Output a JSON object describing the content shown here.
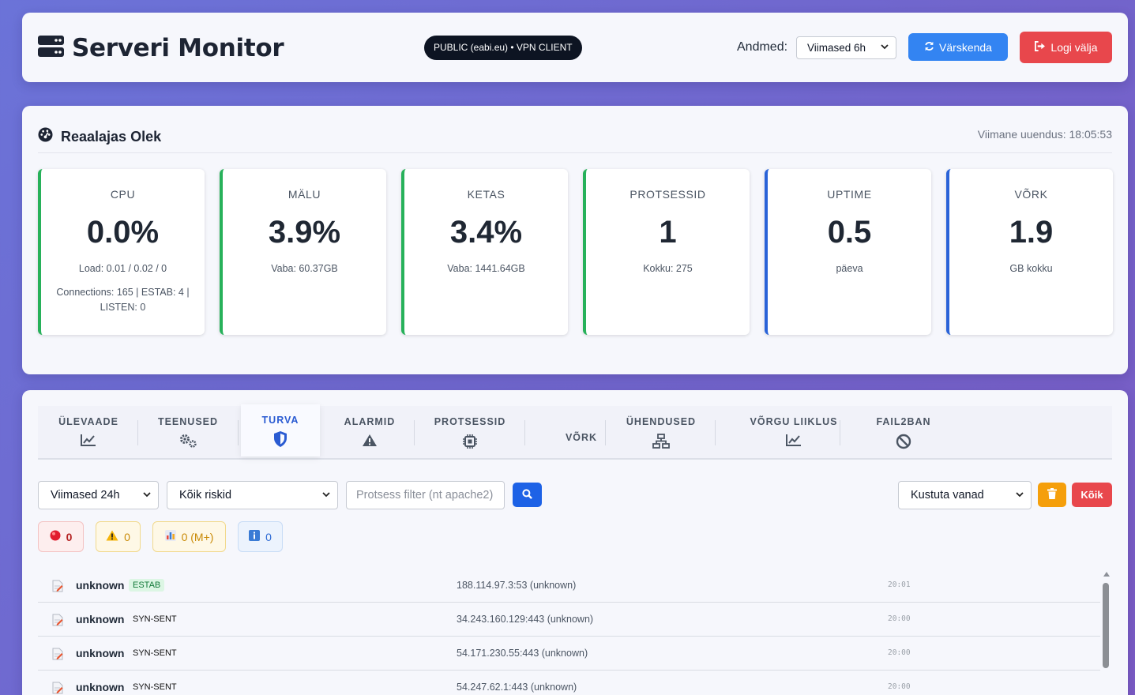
{
  "header": {
    "title": "Serveri Monitor",
    "env_badge": "PUBLIC (eabi.eu) • VPN CLIENT",
    "data_label": "Andmed:",
    "data_range": "Viimased 6h",
    "refresh_label": "Värskenda",
    "logout_label": "Logi välja"
  },
  "realtime": {
    "title": "Reaalajas Olek",
    "last_update": "Viimane uuendus: 18:05:53",
    "cards": [
      {
        "label": "CPU",
        "value": "0.0%",
        "sub": "Load: 0.01 / 0.02 / 0",
        "sub2": "Connections: 165 | ESTAB: 4 | LISTEN: 0"
      },
      {
        "label": "MÄLU",
        "value": "3.9%",
        "sub": "Vaba: 60.37GB"
      },
      {
        "label": "KETAS",
        "value": "3.4%",
        "sub": "Vaba: 1441.64GB"
      },
      {
        "label": "PROTSESSID",
        "value": "1",
        "sub": "Kokku: 275"
      },
      {
        "label": "UPTIME",
        "value": "0.5",
        "sub": "päeva"
      },
      {
        "label": "VÕRK",
        "value": "1.9",
        "sub": "GB kokku"
      }
    ]
  },
  "tabs": [
    {
      "label": "ÜLEVAADE",
      "icon": "chart-line-icon"
    },
    {
      "label": "TEENUSED",
      "icon": "cogs-icon"
    },
    {
      "label": "TURVA",
      "icon": "shield-icon",
      "active": true
    },
    {
      "label": "ALARMID",
      "icon": "warning-icon"
    },
    {
      "label": "PROTSESSID",
      "icon": "chip-icon"
    },
    {
      "label": "VÕRK",
      "icon": ""
    },
    {
      "label": "ÜHENDUSED",
      "icon": "network-icon"
    },
    {
      "label": "VÕRGU LIIKLUS",
      "icon": "chart-line-icon"
    },
    {
      "label": "FAIL2BAN",
      "icon": "ban-icon"
    }
  ],
  "filters": {
    "period": "Viimased 24h",
    "risk": "Kõik riskid",
    "process_placeholder": "Protsess filter (nt apache2)",
    "cleanup": "Kustuta vanad",
    "all_label": "Kõik"
  },
  "counters": {
    "critical": "0",
    "high": "0",
    "medium": "0 (M+)",
    "info": "0"
  },
  "connections": [
    {
      "process": "unknown",
      "state": "ESTAB",
      "address": "188.114.97.3:53 (unknown)",
      "time": "20:01"
    },
    {
      "process": "unknown",
      "state": "SYN-SENT",
      "address": "34.243.160.129:443 (unknown)",
      "time": "20:00"
    },
    {
      "process": "unknown",
      "state": "SYN-SENT",
      "address": "54.171.230.55:443 (unknown)",
      "time": "20:00"
    },
    {
      "process": "unknown",
      "state": "SYN-SENT",
      "address": "54.247.62.1:443 (unknown)",
      "time": "20:00"
    }
  ],
  "colors": {
    "green_accent": "#27b15a",
    "blue_accent": "#2a63d8",
    "refresh": "#3384f2",
    "logout": "#e8474c",
    "active_tab": "#2a5bd2"
  }
}
